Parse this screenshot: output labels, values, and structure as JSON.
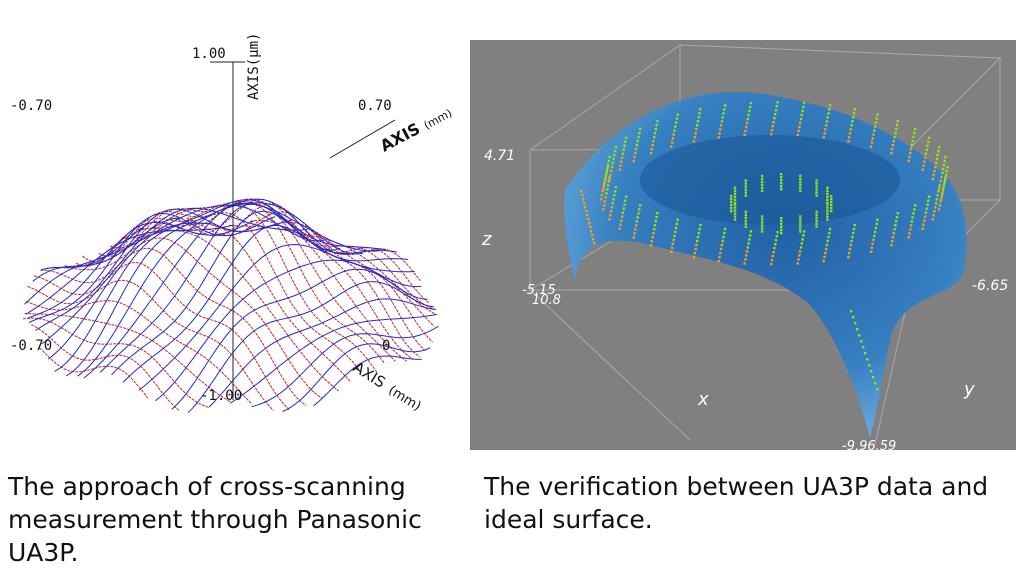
{
  "left_figure": {
    "labels": {
      "z_top": "1.00",
      "z_axis": "AXIS(μm)",
      "left_top": "-0.70",
      "right_top": "0.70",
      "axis_mm_top": "AXIS",
      "axis_mm_unit_top": "(mm)",
      "left_bottom": "-0.70",
      "bottom_center": "-1.00",
      "bottom_right_partial": "0",
      "axis_mm_bottom": "AXIS",
      "axis_mm_unit_bottom": "(mm)"
    },
    "colors": {
      "series_a": "#d42020",
      "series_b": "#1a2fd0"
    }
  },
  "right_figure": {
    "labels": {
      "z_max": "4.71",
      "z_name": "z",
      "x_left": "-5.15",
      "x_left2": "10.8",
      "y_right": "-6.65",
      "x_name": "x",
      "y_name": "y",
      "bottom": "-9.96.59"
    },
    "colors": {
      "background": "#808080",
      "surface": "#1f6fb5",
      "points_hi": "#f0a020",
      "points_lo": "#8fe020"
    }
  },
  "captions": {
    "left": "The approach of cross-scanning measurement through Panasonic UA3P.",
    "right": "The verification between UA3P data and ideal surface."
  }
}
